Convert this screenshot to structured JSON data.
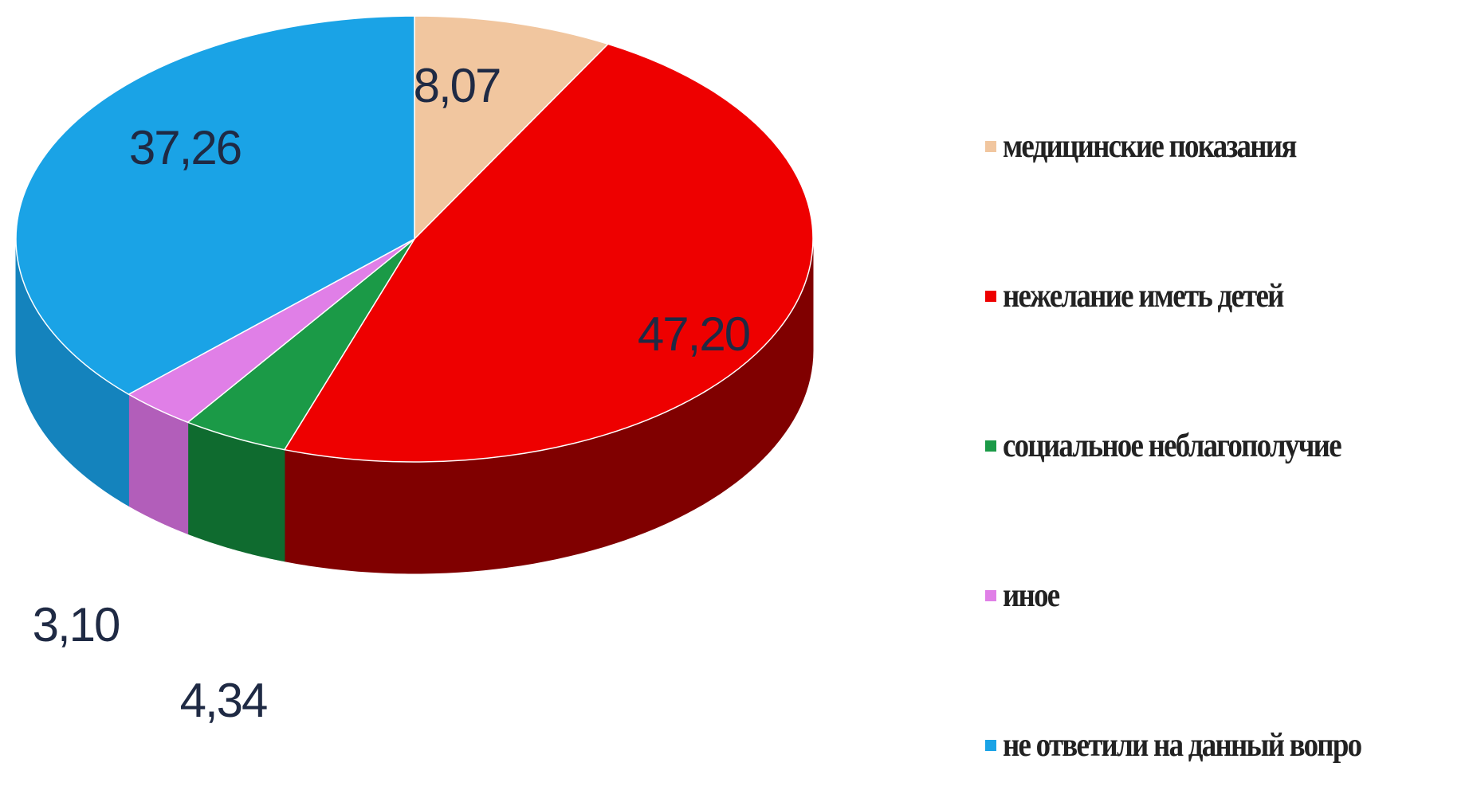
{
  "chart_data": {
    "type": "pie",
    "style": "3d",
    "title": "",
    "categories": [
      "медицинские показания",
      "нежелание иметь детей",
      "социальное неблагополучие",
      "иное",
      "не ответили на данный вопро"
    ],
    "values": [
      8.07,
      47.2,
      4.34,
      3.1,
      37.26
    ],
    "value_labels": [
      "8,07",
      "47,20",
      "4,34",
      "3,10",
      "37,26"
    ],
    "colors": [
      "#f1c69f",
      "#ee0000",
      "#1b9a47",
      "#e07fe7",
      "#1aa3e6"
    ],
    "side_colors": [
      "#c8a07c",
      "#800000",
      "#0f6b2f",
      "#b25eba",
      "#1483bd"
    ],
    "legend_position": "right"
  }
}
